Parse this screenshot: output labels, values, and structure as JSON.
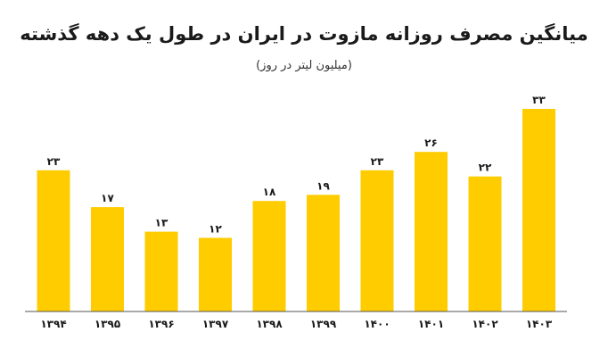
{
  "chart_data": {
    "type": "bar",
    "title": "میانگین مصرف روزانه مازوت در ایران در طول یک دهه گذشته",
    "subtitle": "(میلیون لیتر در روز)",
    "categories": [
      "۱۳۹۴",
      "۱۳۹۵",
      "۱۳۹۶",
      "۱۳۹۷",
      "۱۳۹۸",
      "۱۳۹۹",
      "۱۴۰۰",
      "۱۴۰۱",
      "۱۴۰۲",
      "۱۴۰۳"
    ],
    "values": [
      23,
      17,
      13,
      12,
      18,
      19,
      23,
      26,
      22,
      33
    ],
    "value_labels": [
      "۲۳",
      "۱۷",
      "۱۳",
      "۱۲",
      "۱۸",
      "۱۹",
      "۲۳",
      "۲۶",
      "۲۲",
      "۳۳"
    ],
    "xlabel": "",
    "ylabel": "",
    "ylim": [
      0,
      33
    ],
    "grid": false,
    "bar_color": "#ffcc00"
  }
}
